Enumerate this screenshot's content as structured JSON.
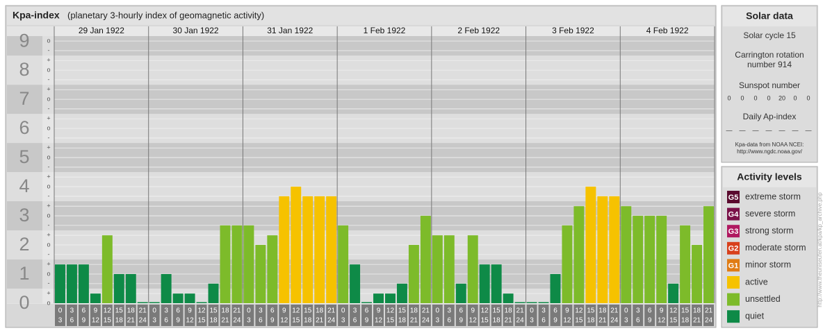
{
  "header": {
    "title": "Kpa-index",
    "subtitle": "(planetary 3-hourly index of geomagnetic activity)"
  },
  "chart_data": {
    "type": "bar",
    "days": [
      "29 Jan 1922",
      "30 Jan 1922",
      "31 Jan 1922",
      "1 Feb 1922",
      "2 Feb 1922",
      "3 Feb 1922",
      "4 Feb 1922"
    ],
    "x_labels": [
      [
        0,
        3
      ],
      [
        3,
        6
      ],
      [
        6,
        9
      ],
      [
        9,
        12
      ],
      [
        12,
        15
      ],
      [
        15,
        18
      ],
      [
        18,
        21
      ],
      [
        21,
        24
      ],
      [
        0,
        3
      ],
      [
        3,
        6
      ],
      [
        6,
        9
      ],
      [
        9,
        12
      ],
      [
        12,
        15
      ],
      [
        15,
        18
      ],
      [
        18,
        21
      ],
      [
        21,
        24
      ],
      [
        0,
        3
      ],
      [
        3,
        6
      ],
      [
        6,
        9
      ],
      [
        9,
        12
      ],
      [
        12,
        15
      ],
      [
        15,
        18
      ],
      [
        18,
        21
      ],
      [
        21,
        24
      ],
      [
        0,
        3
      ],
      [
        3,
        6
      ],
      [
        6,
        9
      ],
      [
        9,
        12
      ],
      [
        12,
        15
      ],
      [
        15,
        18
      ],
      [
        18,
        21
      ],
      [
        21,
        24
      ],
      [
        0,
        3
      ],
      [
        3,
        6
      ],
      [
        6,
        9
      ],
      [
        9,
        12
      ],
      [
        12,
        15
      ],
      [
        15,
        18
      ],
      [
        18,
        21
      ],
      [
        21,
        24
      ],
      [
        0,
        3
      ],
      [
        3,
        6
      ],
      [
        6,
        9
      ],
      [
        9,
        12
      ],
      [
        12,
        15
      ],
      [
        15,
        18
      ],
      [
        18,
        21
      ],
      [
        21,
        24
      ],
      [
        0,
        3
      ],
      [
        3,
        6
      ],
      [
        6,
        9
      ],
      [
        9,
        12
      ],
      [
        12,
        15
      ],
      [
        15,
        18
      ],
      [
        18,
        21
      ],
      [
        21,
        24
      ]
    ],
    "values": [
      1.33,
      1.33,
      1.33,
      0.33,
      2.33,
      1,
      1,
      0,
      0,
      1,
      0.33,
      0.33,
      0,
      0.67,
      2.67,
      2.67,
      2.67,
      2,
      2.33,
      3.67,
      4,
      3.67,
      3.67,
      3.67,
      2.67,
      1.33,
      0,
      0.33,
      0.33,
      0.67,
      2,
      3,
      2.33,
      2.33,
      0.67,
      2.33,
      1.33,
      1.33,
      0.33,
      0,
      0,
      0,
      1,
      2.67,
      3.33,
      4,
      3.67,
      3.67,
      3.33,
      3,
      3,
      3,
      0.67,
      2.67,
      2,
      3.33
    ],
    "colors": [
      "#0e8a47",
      "#0e8a47",
      "#0e8a47",
      "#0e8a47",
      "#7dbb2a",
      "#0e8a47",
      "#0e8a47",
      "#0e8a47",
      "#0e8a47",
      "#0e8a47",
      "#0e8a47",
      "#0e8a47",
      "#0e8a47",
      "#0e8a47",
      "#7dbb2a",
      "#7dbb2a",
      "#7dbb2a",
      "#7dbb2a",
      "#7dbb2a",
      "#f6c200",
      "#f6c200",
      "#f6c200",
      "#f6c200",
      "#f6c200",
      "#7dbb2a",
      "#0e8a47",
      "#0e8a47",
      "#0e8a47",
      "#0e8a47",
      "#0e8a47",
      "#7dbb2a",
      "#7dbb2a",
      "#7dbb2a",
      "#7dbb2a",
      "#0e8a47",
      "#7dbb2a",
      "#0e8a47",
      "#0e8a47",
      "#0e8a47",
      "#0e8a47",
      "#0e8a47",
      "#0e8a47",
      "#0e8a47",
      "#7dbb2a",
      "#7dbb2a",
      "#f6c200",
      "#f6c200",
      "#f6c200",
      "#7dbb2a",
      "#7dbb2a",
      "#7dbb2a",
      "#7dbb2a",
      "#0e8a47",
      "#7dbb2a",
      "#7dbb2a",
      "#7dbb2a"
    ],
    "ylim": [
      0,
      9.17
    ],
    "yticks": [
      0,
      1,
      2,
      3,
      4,
      5,
      6,
      7,
      8,
      9
    ],
    "minor_ticks": [
      {
        "value": 9,
        "label": "o"
      },
      {
        "value": 8.67,
        "label": "-"
      },
      {
        "value": 8.33,
        "label": "+"
      },
      {
        "value": 8,
        "label": "o"
      },
      {
        "value": 7.67,
        "label": "-"
      },
      {
        "value": 7.33,
        "label": "+"
      },
      {
        "value": 7,
        "label": "o"
      },
      {
        "value": 6.67,
        "label": "-"
      },
      {
        "value": 6.33,
        "label": "+"
      },
      {
        "value": 6,
        "label": "o"
      },
      {
        "value": 5.67,
        "label": "-"
      },
      {
        "value": 5.33,
        "label": "+"
      },
      {
        "value": 5,
        "label": "o"
      },
      {
        "value": 4.67,
        "label": "-"
      },
      {
        "value": 4.33,
        "label": "+"
      },
      {
        "value": 4,
        "label": "o"
      },
      {
        "value": 3.67,
        "label": "-"
      },
      {
        "value": 3.33,
        "label": "+"
      },
      {
        "value": 3,
        "label": "o"
      },
      {
        "value": 2.67,
        "label": "-"
      },
      {
        "value": 2.33,
        "label": "+"
      },
      {
        "value": 2,
        "label": "o"
      },
      {
        "value": 1.67,
        "label": "-"
      },
      {
        "value": 1.33,
        "label": "+"
      },
      {
        "value": 1,
        "label": "o"
      },
      {
        "value": 0.67,
        "label": "-"
      },
      {
        "value": 0.33,
        "label": "+"
      },
      {
        "value": 0,
        "label": "o"
      }
    ]
  },
  "solar": {
    "title": "Solar data",
    "cycle": "Solar cycle 15",
    "carrington": [
      "Carrington rotation",
      "number 914"
    ],
    "sunspot_title": "Sunspot number",
    "sunspots": [
      0,
      0,
      0,
      0,
      20,
      0,
      0
    ],
    "ap_title": "Daily Ap-index",
    "ap": [
      "—",
      "—",
      "—",
      "—",
      "—",
      "—",
      "—"
    ],
    "source": [
      "Kpa-data from NOAA NCEI:",
      "http://www.ngdc.noaa.gov/"
    ]
  },
  "activity_levels": {
    "title": "Activity levels",
    "items": [
      {
        "code": "G5",
        "name": "extreme storm",
        "color": "#5a0a2e"
      },
      {
        "code": "G4",
        "name": "severe storm",
        "color": "#7a1048"
      },
      {
        "code": "G3",
        "name": "strong storm",
        "color": "#b01860"
      },
      {
        "code": "G2",
        "name": "moderate storm",
        "color": "#d8401c"
      },
      {
        "code": "G1",
        "name": "minor storm",
        "color": "#e07c14"
      },
      {
        "name": "active",
        "color": "#f6c200"
      },
      {
        "name": "unsettled",
        "color": "#7dbb2a"
      },
      {
        "name": "quiet",
        "color": "#0e8a47"
      }
    ]
  },
  "credit": "http://www.theuniseufen.at/kpa/kp_archive.php"
}
